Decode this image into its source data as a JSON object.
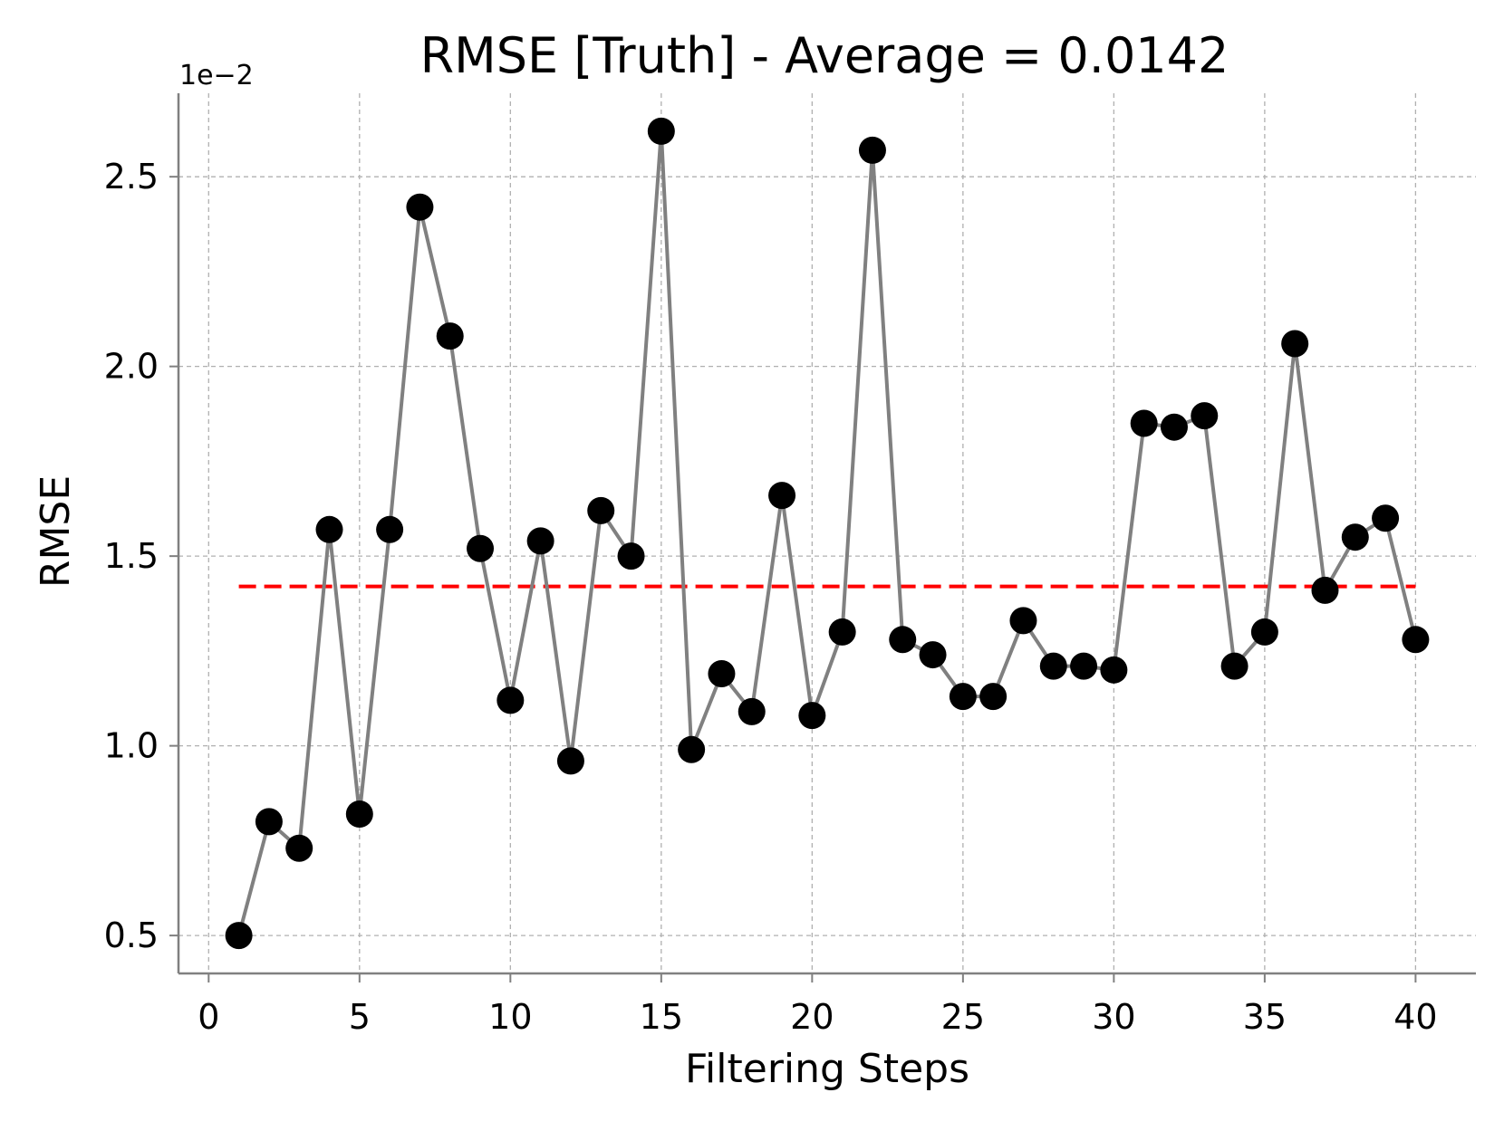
{
  "chart_data": {
    "type": "line",
    "title": "RMSE [Truth] - Average = 0.0142",
    "xlabel": "Filtering Steps",
    "ylabel": "RMSE",
    "y_scale_label": "1e−2",
    "xlim": [
      -1,
      42
    ],
    "ylim": [
      0.4,
      2.72
    ],
    "x_ticks": [
      0,
      5,
      10,
      15,
      20,
      25,
      30,
      35,
      40
    ],
    "x_tick_labels": [
      "0",
      "5",
      "10",
      "15",
      "20",
      "25",
      "30",
      "35",
      "40"
    ],
    "y_ticks": [
      0.5,
      1.0,
      1.5,
      2.0,
      2.5
    ],
    "y_tick_labels": [
      "0.5",
      "1.0",
      "1.5",
      "2.0",
      "2.5"
    ],
    "grid": true,
    "series": [
      {
        "name": "RMSE",
        "x": [
          1,
          2,
          3,
          4,
          5,
          6,
          7,
          8,
          9,
          10,
          11,
          12,
          13,
          14,
          15,
          16,
          17,
          18,
          19,
          20,
          21,
          22,
          23,
          24,
          25,
          26,
          27,
          28,
          29,
          30,
          31,
          32,
          33,
          34,
          35,
          36,
          37,
          38,
          39,
          40
        ],
        "values": [
          0.5,
          0.8,
          0.73,
          1.57,
          0.82,
          1.57,
          2.42,
          2.08,
          1.52,
          1.12,
          1.54,
          0.96,
          1.62,
          1.5,
          2.62,
          0.99,
          1.19,
          1.09,
          1.66,
          1.08,
          1.3,
          2.57,
          1.28,
          1.24,
          1.13,
          1.13,
          1.33,
          1.21,
          1.21,
          1.2,
          1.85,
          1.84,
          1.87,
          1.21,
          1.3,
          2.06,
          1.41,
          1.55,
          1.6,
          1.28
        ],
        "line_color": "#808080",
        "marker_color": "#000000"
      },
      {
        "name": "Average",
        "x": [
          1,
          40
        ],
        "values": [
          1.42,
          1.42
        ],
        "line_color": "#ff0000",
        "style": "dashed"
      }
    ]
  }
}
